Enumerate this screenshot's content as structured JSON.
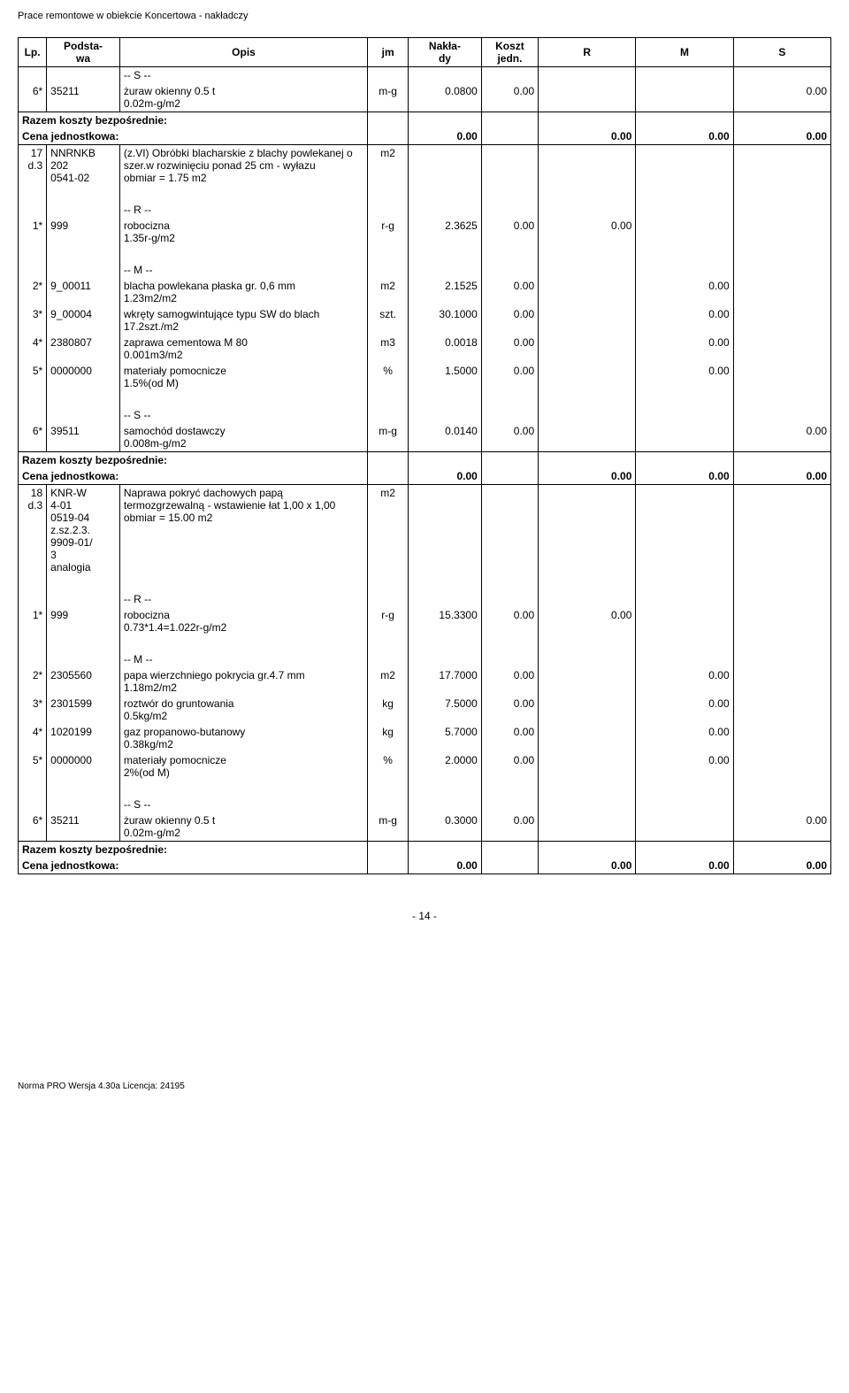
{
  "doc_header": "Prace remontowe w obiekcie Koncertowa - nakładczy",
  "columns": {
    "lp": "Lp.",
    "podstawa": "Podsta-\nwa",
    "opis": "Opis",
    "jm": "jm",
    "naklady": "Nakła-\ndy",
    "koszt": "Koszt\njedn.",
    "r": "R",
    "m": "M",
    "s": "S"
  },
  "labels": {
    "razem": "Razem koszty bezpośrednie:",
    "cena_jedn": "Cena jednostkowa:",
    "s_header": "-- S --",
    "r_header": "-- R --",
    "m_header": "-- M --"
  },
  "rows": [
    {
      "t": "sect",
      "v": "-- S --"
    },
    {
      "t": "data",
      "lp": "6*",
      "pod": "35211",
      "opis": "żuraw okienny 0.5 t\n0.02m-g/m2",
      "jm": "m-g",
      "nak": "0.0800",
      "koszt": "0.00",
      "r": "",
      "m": "",
      "s": "0.00"
    },
    {
      "t": "razem"
    },
    {
      "t": "cena",
      "val": "0.00",
      "r": "0.00",
      "m": "0.00",
      "s": "0.00"
    },
    {
      "t": "data",
      "lp": "17\nd.3",
      "pod": "NNRNKB\n202\n0541-02",
      "opis": "(z.VI) Obróbki blacharskie z blachy powlekanej o szer.w rozwinięciu ponad 25 cm - wyłazu\nobmiar  =  1.75 m2",
      "jm": "m2",
      "nak": "",
      "koszt": "",
      "r": "",
      "m": "",
      "s": ""
    },
    {
      "t": "blank"
    },
    {
      "t": "sect",
      "v": "-- R --"
    },
    {
      "t": "data",
      "lp": "1*",
      "pod": "999",
      "opis": "robocizna\n1.35r-g/m2",
      "jm": "r-g",
      "nak": "2.3625",
      "koszt": "0.00",
      "r": "0.00",
      "m": "",
      "s": ""
    },
    {
      "t": "blank"
    },
    {
      "t": "sect",
      "v": "-- M --"
    },
    {
      "t": "data",
      "lp": "2*",
      "pod": "9_00011",
      "opis": "blacha powlekana płaska gr. 0,6 mm\n1.23m2/m2",
      "jm": "m2",
      "nak": "2.1525",
      "koszt": "0.00",
      "r": "",
      "m": "0.00",
      "s": ""
    },
    {
      "t": "data",
      "lp": "3*",
      "pod": "9_00004",
      "opis": "wkręty samogwintujące typu SW do blach\n17.2szt./m2",
      "jm": "szt.",
      "nak": "30.1000",
      "koszt": "0.00",
      "r": "",
      "m": "0.00",
      "s": ""
    },
    {
      "t": "data",
      "lp": "4*",
      "pod": "2380807",
      "opis": "zaprawa cementowa M 80\n0.001m3/m2",
      "jm": "m3",
      "nak": "0.0018",
      "koszt": "0.00",
      "r": "",
      "m": "0.00",
      "s": ""
    },
    {
      "t": "data",
      "lp": "5*",
      "pod": "0000000",
      "opis": "materiały pomocnicze\n1.5%(od M)",
      "jm": "%",
      "nak": "1.5000",
      "koszt": "0.00",
      "r": "",
      "m": "0.00",
      "s": ""
    },
    {
      "t": "blank"
    },
    {
      "t": "sect",
      "v": "-- S --"
    },
    {
      "t": "data",
      "lp": "6*",
      "pod": "39511",
      "opis": "samochód dostawczy\n0.008m-g/m2",
      "jm": "m-g",
      "nak": "0.0140",
      "koszt": "0.00",
      "r": "",
      "m": "",
      "s": "0.00"
    },
    {
      "t": "razem"
    },
    {
      "t": "cena",
      "val": "0.00",
      "r": "0.00",
      "m": "0.00",
      "s": "0.00"
    },
    {
      "t": "data",
      "lp": "18\nd.3",
      "pod": "KNR-W\n4-01\n0519-04\nz.sz.2.3.\n9909-01/\n3\nanalogia",
      "opis": "Naprawa pokryć dachowych papą termozgrzewalną - wstawienie łat 1,00 x 1,00\nobmiar  =  15.00 m2",
      "jm": "m2",
      "nak": "",
      "koszt": "",
      "r": "",
      "m": "",
      "s": ""
    },
    {
      "t": "blank"
    },
    {
      "t": "sect",
      "v": "-- R --"
    },
    {
      "t": "data",
      "lp": "1*",
      "pod": "999",
      "opis": "robocizna\n0.73*1.4=1.022r-g/m2",
      "jm": "r-g",
      "nak": "15.3300",
      "koszt": "0.00",
      "r": "0.00",
      "m": "",
      "s": ""
    },
    {
      "t": "blank"
    },
    {
      "t": "sect",
      "v": "-- M --"
    },
    {
      "t": "data",
      "lp": "2*",
      "pod": "2305560",
      "opis": "papa wierzchniego pokrycia gr.4.7 mm\n1.18m2/m2",
      "jm": "m2",
      "nak": "17.7000",
      "koszt": "0.00",
      "r": "",
      "m": "0.00",
      "s": ""
    },
    {
      "t": "data",
      "lp": "3*",
      "pod": "2301599",
      "opis": "roztwór do gruntowania\n0.5kg/m2",
      "jm": "kg",
      "nak": "7.5000",
      "koszt": "0.00",
      "r": "",
      "m": "0.00",
      "s": ""
    },
    {
      "t": "data",
      "lp": "4*",
      "pod": "1020199",
      "opis": "gaz propanowo-butanowy\n0.38kg/m2",
      "jm": "kg",
      "nak": "5.7000",
      "koszt": "0.00",
      "r": "",
      "m": "0.00",
      "s": ""
    },
    {
      "t": "data",
      "lp": "5*",
      "pod": "0000000",
      "opis": "materiały pomocnicze\n2%(od M)",
      "jm": "%",
      "nak": "2.0000",
      "koszt": "0.00",
      "r": "",
      "m": "0.00",
      "s": ""
    },
    {
      "t": "blank"
    },
    {
      "t": "sect",
      "v": "-- S --"
    },
    {
      "t": "data",
      "lp": "6*",
      "pod": "35211",
      "opis": "żuraw okienny 0.5 t\n0.02m-g/m2",
      "jm": "m-g",
      "nak": "0.3000",
      "koszt": "0.00",
      "r": "",
      "m": "",
      "s": "0.00"
    },
    {
      "t": "razem"
    },
    {
      "t": "cena",
      "val": "0.00",
      "r": "0.00",
      "m": "0.00",
      "s": "0.00"
    }
  ],
  "page_num": "- 14 -",
  "footer_text": "Norma PRO Wersja 4.30a Licencja: 24195"
}
